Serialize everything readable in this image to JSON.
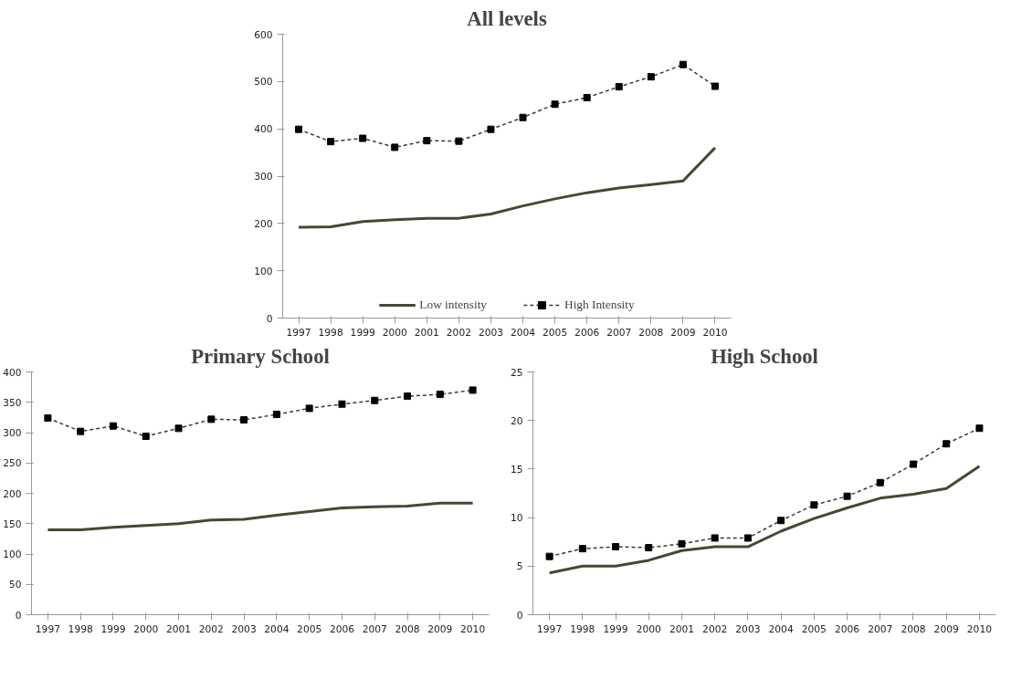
{
  "chart_data": [
    {
      "type": "line",
      "title": "All levels",
      "categories": [
        "1997",
        "1998",
        "1999",
        "2000",
        "2001",
        "2002",
        "2003",
        "2004",
        "2005",
        "2006",
        "2007",
        "2008",
        "2009",
        "2010"
      ],
      "ylim": [
        0,
        600
      ],
      "yticks": [
        0,
        100,
        200,
        300,
        400,
        500,
        600
      ],
      "grid": false,
      "legend": "bottom",
      "series": [
        {
          "name": "Low intensity",
          "color": "#4a4634",
          "line_style": "solid",
          "marker": "none",
          "values": [
            192,
            193,
            204,
            208,
            211,
            211,
            220,
            237,
            252,
            265,
            275,
            282,
            290,
            360
          ]
        },
        {
          "name": "High Intensity",
          "color": "#3d3a2c",
          "line_style": "dashed",
          "marker": "square",
          "values": [
            399,
            373,
            380,
            361,
            375,
            374,
            399,
            424,
            452,
            466,
            489,
            510,
            536,
            490
          ]
        }
      ]
    },
    {
      "type": "line",
      "title": "Primary School",
      "categories": [
        "1997",
        "1998",
        "1999",
        "2000",
        "2001",
        "2002",
        "2003",
        "2004",
        "2005",
        "2006",
        "2007",
        "2008",
        "2009",
        "2010"
      ],
      "ylim": [
        0,
        400
      ],
      "yticks": [
        0,
        50,
        100,
        150,
        200,
        250,
        300,
        350,
        400
      ],
      "grid": false,
      "series": [
        {
          "color": "#4a4634",
          "line_style": "solid",
          "marker": "none",
          "values": [
            140,
            140,
            144,
            147,
            150,
            156,
            157,
            164,
            170,
            176,
            178,
            179,
            184,
            184
          ]
        },
        {
          "color": "#3d3a2c",
          "line_style": "dashed",
          "marker": "square",
          "values": [
            324,
            302,
            311,
            294,
            307,
            322,
            321,
            330,
            340,
            347,
            353,
            360,
            363,
            370
          ]
        }
      ]
    },
    {
      "type": "line",
      "title": "High School",
      "categories": [
        "1997",
        "1998",
        "1999",
        "2000",
        "2001",
        "2002",
        "2003",
        "2004",
        "2005",
        "2006",
        "2007",
        "2008",
        "2009",
        "2010"
      ],
      "ylim": [
        0,
        25
      ],
      "yticks": [
        0,
        5,
        10,
        15,
        20,
        25
      ],
      "grid": false,
      "series": [
        {
          "color": "#4a4634",
          "line_style": "solid",
          "marker": "none",
          "values": [
            4.3,
            5.0,
            5.0,
            5.6,
            6.6,
            7.0,
            7.0,
            8.6,
            9.9,
            11.0,
            12.0,
            12.4,
            13.0,
            15.3
          ]
        },
        {
          "color": "#3d3a2c",
          "line_style": "dashed",
          "marker": "square",
          "values": [
            6.0,
            6.8,
            7.0,
            6.9,
            7.3,
            7.9,
            7.9,
            9.7,
            11.3,
            12.2,
            13.6,
            15.5,
            17.6,
            19.2
          ]
        }
      ]
    }
  ]
}
